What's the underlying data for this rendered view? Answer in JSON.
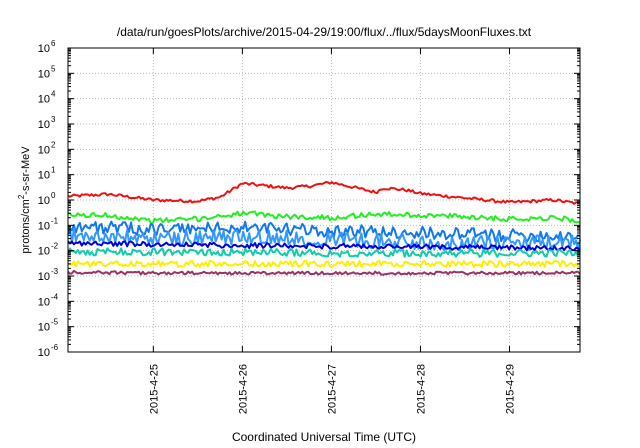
{
  "chart_data": {
    "type": "line",
    "title": "/data/run/goesPlots/archive/2015-04-29/19:00/flux/../flux/5daysMoonFluxes.txt",
    "xlabel": "Coordinated Universal Time (UTC)",
    "ylabel_parts": {
      "pre": "protons/cm",
      "sup": "2",
      "post": "-s-sr-MeV"
    },
    "y_scale": "log",
    "ylim": [
      1e-06,
      1000000.0
    ],
    "y_ticks": [
      {
        "base": "10",
        "exp": "-6",
        "value": 1e-06
      },
      {
        "base": "10",
        "exp": "-5",
        "value": 1e-05
      },
      {
        "base": "10",
        "exp": "-4",
        "value": 0.0001
      },
      {
        "base": "10",
        "exp": "-3",
        "value": 0.001
      },
      {
        "base": "10",
        "exp": "-2",
        "value": 0.01
      },
      {
        "base": "10",
        "exp": "-1",
        "value": 0.1
      },
      {
        "base": "10",
        "exp": "0",
        "value": 1
      },
      {
        "base": "10",
        "exp": "1",
        "value": 10
      },
      {
        "base": "10",
        "exp": "2",
        "value": 100
      },
      {
        "base": "10",
        "exp": "3",
        "value": 1000
      },
      {
        "base": "10",
        "exp": "4",
        "value": 10000
      },
      {
        "base": "10",
        "exp": "5",
        "value": 100000
      },
      {
        "base": "10",
        "exp": "6",
        "value": 1000000
      }
    ],
    "xlim": [
      "2015-04-24T01:00",
      "2015-04-29T19:00"
    ],
    "x_ticks": [
      {
        "label": "2015-4-25",
        "date": "2015-04-25T00:00"
      },
      {
        "label": "2015-4-26",
        "date": "2015-04-26T00:00"
      },
      {
        "label": "2015-4-27",
        "date": "2015-04-27T00:00"
      },
      {
        "label": "2015-4-28",
        "date": "2015-04-28T00:00"
      },
      {
        "label": "2015-4-29",
        "date": "2015-04-29T00:00"
      }
    ],
    "grid": true,
    "legend": "none",
    "series": [
      {
        "color": "#ee1111",
        "noise": 0.06,
        "x": [
          "2015-04-24T01:00",
          "2015-04-24T12:00",
          "2015-04-25T00:00",
          "2015-04-25T12:00",
          "2015-04-25T18:00",
          "2015-04-26T00:00",
          "2015-04-26T12:00",
          "2015-04-26T18:00",
          "2015-04-27T00:00",
          "2015-04-27T12:00",
          "2015-04-27T14:00",
          "2015-04-27T20:00",
          "2015-04-28T00:00",
          "2015-04-28T12:00",
          "2015-04-29T00:00",
          "2015-04-29T12:00",
          "2015-04-29T19:00"
        ],
        "y": [
          1.4,
          1.7,
          1.0,
          0.9,
          1.3,
          4.5,
          3.0,
          3.5,
          5.0,
          2.0,
          3.0,
          2.5,
          1.8,
          1.2,
          0.8,
          1.0,
          0.7
        ]
      },
      {
        "color": "#22ee22",
        "noise": 0.1,
        "x": [
          "2015-04-24T01:00",
          "2015-04-24T12:00",
          "2015-04-25T00:00",
          "2015-04-25T12:00",
          "2015-04-26T00:00",
          "2015-04-26T12:00",
          "2015-04-27T00:00",
          "2015-04-27T12:00",
          "2015-04-28T00:00",
          "2015-04-28T12:00",
          "2015-04-29T00:00",
          "2015-04-29T12:00",
          "2015-04-29T19:00"
        ],
        "y": [
          0.25,
          0.25,
          0.15,
          0.18,
          0.3,
          0.22,
          0.2,
          0.28,
          0.25,
          0.22,
          0.18,
          0.2,
          0.15
        ]
      },
      {
        "color": "#1177ee",
        "noise": 0.25,
        "x": [
          "2015-04-24T01:00",
          "2015-04-25T00:00",
          "2015-04-26T00:00",
          "2015-04-27T00:00",
          "2015-04-28T00:00",
          "2015-04-29T00:00",
          "2015-04-29T19:00"
        ],
        "y": [
          0.09,
          0.07,
          0.08,
          0.06,
          0.05,
          0.04,
          0.04
        ]
      },
      {
        "color": "#3399ff",
        "noise": 0.3,
        "x": [
          "2015-04-24T01:00",
          "2015-04-25T00:00",
          "2015-04-26T00:00",
          "2015-04-27T00:00",
          "2015-04-28T00:00",
          "2015-04-29T00:00",
          "2015-04-29T19:00"
        ],
        "y": [
          0.04,
          0.03,
          0.035,
          0.03,
          0.02,
          0.02,
          0.02
        ]
      },
      {
        "color": "#0000dd",
        "noise": 0.1,
        "x": [
          "2015-04-24T01:00",
          "2015-04-25T00:00",
          "2015-04-26T00:00",
          "2015-04-27T00:00",
          "2015-04-28T00:00",
          "2015-04-29T00:00",
          "2015-04-29T19:00"
        ],
        "y": [
          0.02,
          0.018,
          0.016,
          0.015,
          0.014,
          0.013,
          0.012
        ]
      },
      {
        "color": "#11ccaa",
        "noise": 0.15,
        "x": [
          "2015-04-24T01:00",
          "2015-04-25T00:00",
          "2015-04-26T00:00",
          "2015-04-27T00:00",
          "2015-04-28T00:00",
          "2015-04-29T00:00",
          "2015-04-29T19:00"
        ],
        "y": [
          0.009,
          0.009,
          0.009,
          0.008,
          0.008,
          0.008,
          0.008
        ]
      },
      {
        "color": "#ffee00",
        "noise": 0.12,
        "x": [
          "2015-04-24T01:00",
          "2015-04-25T00:00",
          "2015-04-26T00:00",
          "2015-04-27T00:00",
          "2015-04-28T00:00",
          "2015-04-29T00:00",
          "2015-04-29T19:00"
        ],
        "y": [
          0.003,
          0.003,
          0.003,
          0.003,
          0.003,
          0.003,
          0.003
        ]
      },
      {
        "color": "#993366",
        "noise": 0.06,
        "x": [
          "2015-04-24T01:00",
          "2015-04-25T00:00",
          "2015-04-26T00:00",
          "2015-04-27T00:00",
          "2015-04-28T00:00",
          "2015-04-29T00:00",
          "2015-04-29T19:00"
        ],
        "y": [
          0.0014,
          0.0013,
          0.0013,
          0.0013,
          0.0013,
          0.0013,
          0.0013
        ]
      }
    ]
  }
}
